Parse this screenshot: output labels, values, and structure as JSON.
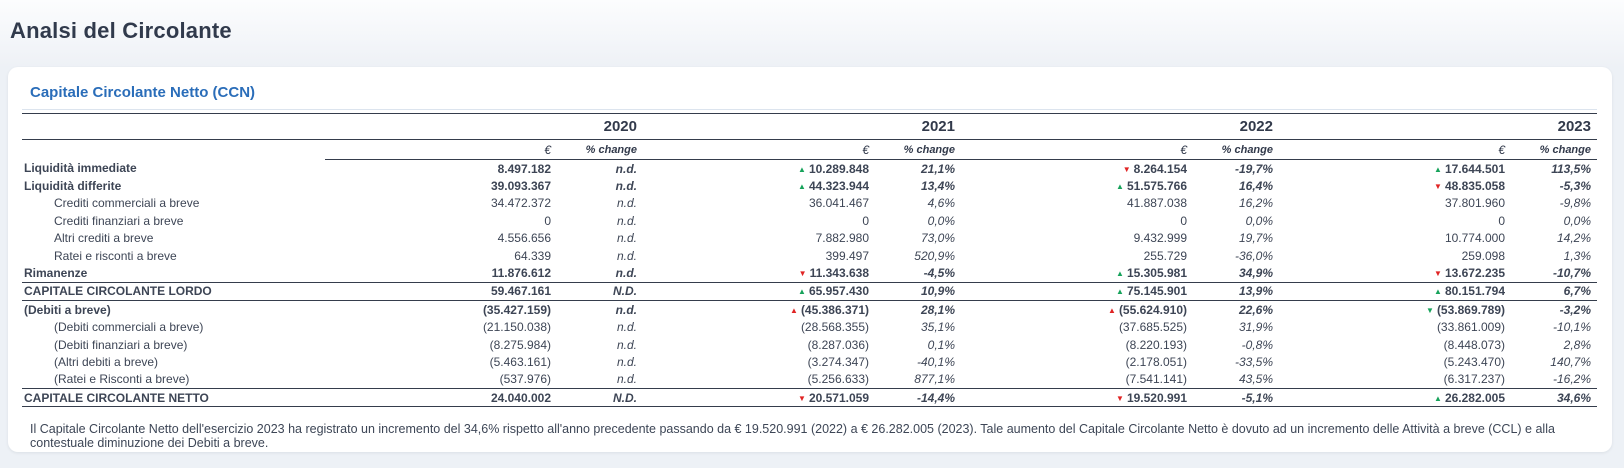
{
  "page": {
    "title": "Analsi del Circolante"
  },
  "card": {
    "title": "Capitale Circolante Netto (CCN)",
    "note": "Il Capitale Circolante Netto dell'esercizio 2023 ha registrato un incremento del 34,6% rispetto all'anno precedente passando da € 19.520.991 (2022) a € 26.282.005 (2023). Tale aumento del Capitale Circolante Netto è dovuto ad un incremento delle Attività a breve (CCL) e alla contestuale diminuzione dei Debiti a breve."
  },
  "colors": {
    "accent": "#2a6db9",
    "green": "#17a35b",
    "red": "#e02424"
  },
  "table": {
    "years": [
      "2020",
      "2021",
      "2022",
      "2023"
    ],
    "subheaders": {
      "value": "€",
      "change": "% change"
    },
    "rows": [
      {
        "label": "Liquidità immediate",
        "style": "bold",
        "cells": [
          {
            "v": "8.497.182",
            "c": "n.d."
          },
          {
            "v": "10.289.848",
            "c": "21,1%",
            "t": "up",
            "tc": "green"
          },
          {
            "v": "8.264.154",
            "c": "-19,7%",
            "t": "down",
            "tc": "red"
          },
          {
            "v": "17.644.501",
            "c": "113,5%",
            "t": "up",
            "tc": "green"
          }
        ]
      },
      {
        "label": "Liquidità differite",
        "style": "bold",
        "cells": [
          {
            "v": "39.093.367",
            "c": "n.d."
          },
          {
            "v": "44.323.944",
            "c": "13,4%",
            "t": "up",
            "tc": "green"
          },
          {
            "v": "51.575.766",
            "c": "16,4%",
            "t": "up",
            "tc": "green"
          },
          {
            "v": "48.835.058",
            "c": "-5,3%",
            "t": "down",
            "tc": "red"
          }
        ]
      },
      {
        "label": "Crediti commerciali a breve",
        "style": "indent",
        "cells": [
          {
            "v": "34.472.372",
            "c": "n.d."
          },
          {
            "v": "36.041.467",
            "c": "4,6%"
          },
          {
            "v": "41.887.038",
            "c": "16,2%"
          },
          {
            "v": "37.801.960",
            "c": "-9,8%"
          }
        ]
      },
      {
        "label": "Crediti finanziari a breve",
        "style": "indent",
        "cells": [
          {
            "v": "0",
            "c": "n.d."
          },
          {
            "v": "0",
            "c": "0,0%"
          },
          {
            "v": "0",
            "c": "0,0%"
          },
          {
            "v": "0",
            "c": "0,0%"
          }
        ]
      },
      {
        "label": "Altri crediti a breve",
        "style": "indent",
        "cells": [
          {
            "v": "4.556.656",
            "c": "n.d."
          },
          {
            "v": "7.882.980",
            "c": "73,0%"
          },
          {
            "v": "9.432.999",
            "c": "19,7%"
          },
          {
            "v": "10.774.000",
            "c": "14,2%"
          }
        ]
      },
      {
        "label": "Ratei e risconti a breve",
        "style": "indent",
        "cells": [
          {
            "v": "64.339",
            "c": "n.d."
          },
          {
            "v": "399.497",
            "c": "520,9%"
          },
          {
            "v": "255.729",
            "c": "-36,0%"
          },
          {
            "v": "259.098",
            "c": "1,3%"
          }
        ]
      },
      {
        "label": "Rimanenze",
        "style": "bold",
        "cells": [
          {
            "v": "11.876.612",
            "c": "n.d."
          },
          {
            "v": "11.343.638",
            "c": "-4,5%",
            "t": "down",
            "tc": "red"
          },
          {
            "v": "15.305.981",
            "c": "34,9%",
            "t": "up",
            "tc": "green"
          },
          {
            "v": "13.672.235",
            "c": "-10,7%",
            "t": "down",
            "tc": "red"
          }
        ]
      },
      {
        "label": "CAPITALE CIRCOLANTE LORDO",
        "style": "total",
        "cells": [
          {
            "v": "59.467.161",
            "c": "n.d."
          },
          {
            "v": "65.957.430",
            "c": "10,9%",
            "t": "up",
            "tc": "green"
          },
          {
            "v": "75.145.901",
            "c": "13,9%",
            "t": "up",
            "tc": "green"
          },
          {
            "v": "80.151.794",
            "c": "6,7%",
            "t": "up",
            "tc": "green"
          }
        ]
      },
      {
        "label": "(Debiti a breve)",
        "style": "bold",
        "cells": [
          {
            "v": "(35.427.159)",
            "c": "n.d."
          },
          {
            "v": "(45.386.371)",
            "c": "28,1%",
            "t": "up",
            "tc": "red"
          },
          {
            "v": "(55.624.910)",
            "c": "22,6%",
            "t": "up",
            "tc": "red"
          },
          {
            "v": "(53.869.789)",
            "c": "-3,2%",
            "t": "down",
            "tc": "green"
          }
        ]
      },
      {
        "label": "(Debiti commerciali a breve)",
        "style": "indent",
        "cells": [
          {
            "v": "(21.150.038)",
            "c": "n.d."
          },
          {
            "v": "(28.568.355)",
            "c": "35,1%"
          },
          {
            "v": "(37.685.525)",
            "c": "31,9%"
          },
          {
            "v": "(33.861.009)",
            "c": "-10,1%"
          }
        ]
      },
      {
        "label": "(Debiti finanziari a breve)",
        "style": "indent",
        "cells": [
          {
            "v": "(8.275.984)",
            "c": "n.d."
          },
          {
            "v": "(8.287.036)",
            "c": "0,1%"
          },
          {
            "v": "(8.220.193)",
            "c": "-0,8%"
          },
          {
            "v": "(8.448.073)",
            "c": "2,8%"
          }
        ]
      },
      {
        "label": "(Altri debiti a breve)",
        "style": "indent",
        "cells": [
          {
            "v": "(5.463.161)",
            "c": "n.d."
          },
          {
            "v": "(3.274.347)",
            "c": "-40,1%"
          },
          {
            "v": "(2.178.051)",
            "c": "-33,5%"
          },
          {
            "v": "(5.243.470)",
            "c": "140,7%"
          }
        ]
      },
      {
        "label": "(Ratei e Risconti a breve)",
        "style": "indent",
        "cells": [
          {
            "v": "(537.976)",
            "c": "n.d."
          },
          {
            "v": "(5.256.633)",
            "c": "877,1%"
          },
          {
            "v": "(7.541.141)",
            "c": "43,5%"
          },
          {
            "v": "(6.317.237)",
            "c": "-16,2%"
          }
        ]
      },
      {
        "label": "CAPITALE CIRCOLANTE NETTO",
        "style": "total",
        "cells": [
          {
            "v": "24.040.002",
            "c": "n.d."
          },
          {
            "v": "20.571.059",
            "c": "-14,4%",
            "t": "down",
            "tc": "red"
          },
          {
            "v": "19.520.991",
            "c": "-5,1%",
            "t": "down",
            "tc": "red"
          },
          {
            "v": "26.282.005",
            "c": "34,6%",
            "t": "up",
            "tc": "green"
          }
        ]
      }
    ]
  }
}
